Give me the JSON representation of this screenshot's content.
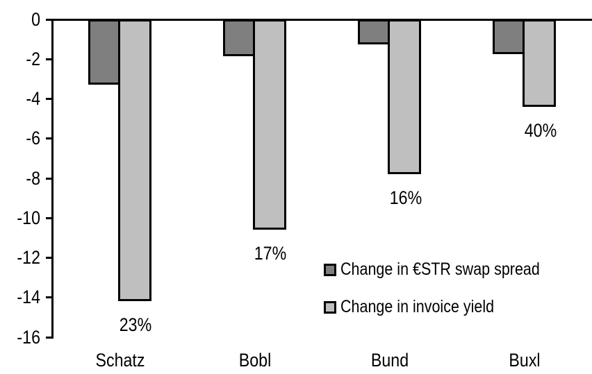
{
  "chart_data": {
    "type": "bar",
    "title": "",
    "xlabel": "",
    "ylabel": "",
    "categories": [
      "Schatz",
      "Bobl",
      "Bund",
      "Buxl"
    ],
    "series": [
      {
        "name": "Change in €STR swap spread",
        "color": "#7f7f7f",
        "values": [
          -3.3,
          -1.85,
          -1.25,
          -1.75
        ]
      },
      {
        "name": "Change in invoice yield",
        "color": "#bfbfbf",
        "values": [
          -14.2,
          -10.6,
          -7.8,
          -4.4
        ],
        "data_labels": [
          "23%",
          "17%",
          "16%",
          "40%"
        ]
      }
    ],
    "ylim": [
      -16,
      0
    ],
    "ytick_labels": [
      "0",
      "-2",
      "-4",
      "-6",
      "-8",
      "-10",
      "-12",
      "-14",
      "-16"
    ],
    "grid": false,
    "legend_position": "inside-right",
    "axis_color": "#000000",
    "bar_border_color": "#000000",
    "text_color": "#000000"
  }
}
